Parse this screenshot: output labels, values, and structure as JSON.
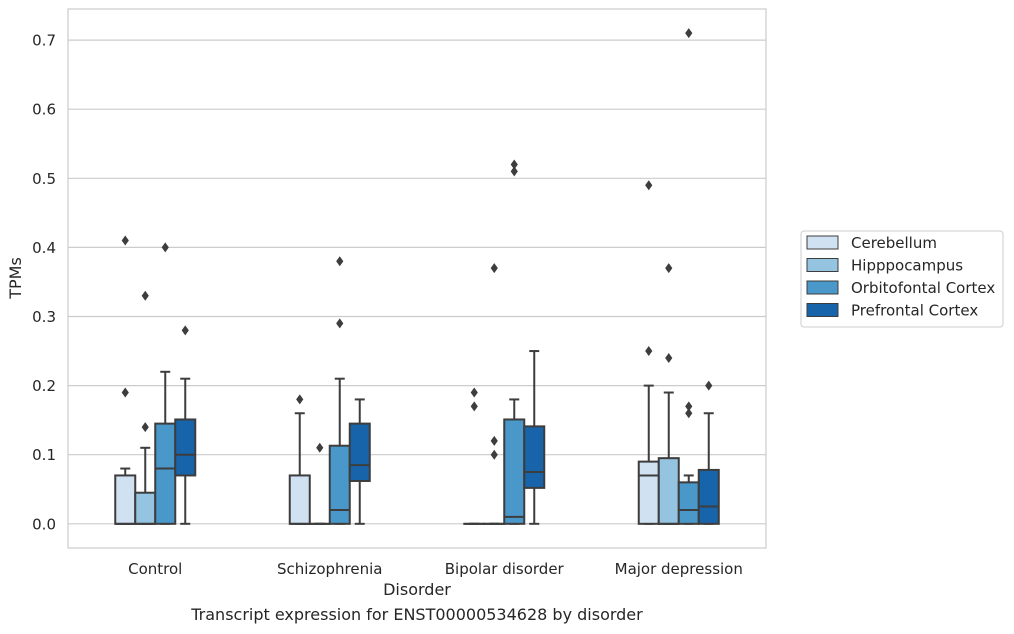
{
  "caption": "Transcript expression for ENST00000534628 by disorder",
  "chart_data": {
    "type": "box",
    "xlabel": "Disorder",
    "ylabel": "TPMs",
    "ylim": [
      -0.035,
      0.745
    ],
    "yticks": [
      0.0,
      0.1,
      0.2,
      0.3,
      0.4,
      0.5,
      0.6,
      0.7
    ],
    "ytick_labels": [
      "0.0",
      "0.1",
      "0.2",
      "0.3",
      "0.4",
      "0.5",
      "0.6",
      "0.7"
    ],
    "categories": [
      "Control",
      "Schizophrenia",
      "Bipolar disorder",
      "Major depression"
    ],
    "grid": true,
    "legend_position": "right",
    "series": [
      {
        "name": "Cerebellum",
        "color": "#d0e1f2",
        "boxes": [
          {
            "q1": 0.0,
            "median": 0.0,
            "q3": 0.07,
            "whisker_low": 0.0,
            "whisker_high": 0.08,
            "outliers": [
              0.19,
              0.41
            ]
          },
          {
            "q1": 0.0,
            "median": 0.0,
            "q3": 0.07,
            "whisker_low": 0.0,
            "whisker_high": 0.16,
            "outliers": [
              0.18
            ]
          },
          {
            "q1": 0.0,
            "median": 0.0,
            "q3": 0.0,
            "whisker_low": 0.0,
            "whisker_high": 0.0,
            "outliers": [
              0.17,
              0.19
            ]
          },
          {
            "q1": 0.0,
            "median": 0.07,
            "q3": 0.09,
            "whisker_low": 0.0,
            "whisker_high": 0.2,
            "outliers": [
              0.25,
              0.49
            ]
          }
        ]
      },
      {
        "name": "Hipppocampus",
        "color": "#94c4df",
        "boxes": [
          {
            "q1": 0.0,
            "median": 0.0,
            "q3": 0.045,
            "whisker_low": 0.0,
            "whisker_high": 0.11,
            "outliers": [
              0.14,
              0.33
            ]
          },
          {
            "q1": 0.0,
            "median": 0.0,
            "q3": 0.0,
            "whisker_low": 0.0,
            "whisker_high": 0.0,
            "outliers": [
              0.11
            ]
          },
          {
            "q1": 0.0,
            "median": 0.0,
            "q3": 0.0,
            "whisker_low": 0.0,
            "whisker_high": 0.0,
            "outliers": [
              0.1,
              0.12,
              0.37
            ]
          },
          {
            "q1": 0.0,
            "median": 0.0,
            "q3": 0.095,
            "whisker_low": 0.0,
            "whisker_high": 0.19,
            "outliers": [
              0.24,
              0.37
            ]
          }
        ]
      },
      {
        "name": "Orbitofontal Cortex",
        "color": "#4a98c9",
        "boxes": [
          {
            "q1": 0.0,
            "median": 0.08,
            "q3": 0.145,
            "whisker_low": 0.0,
            "whisker_high": 0.22,
            "outliers": [
              0.4
            ]
          },
          {
            "q1": 0.0,
            "median": 0.02,
            "q3": 0.113,
            "whisker_low": 0.0,
            "whisker_high": 0.21,
            "outliers": [
              0.29,
              0.38
            ]
          },
          {
            "q1": 0.0,
            "median": 0.01,
            "q3": 0.151,
            "whisker_low": 0.0,
            "whisker_high": 0.18,
            "outliers": [
              0.51,
              0.52
            ]
          },
          {
            "q1": 0.0,
            "median": 0.02,
            "q3": 0.06,
            "whisker_low": 0.0,
            "whisker_high": 0.07,
            "outliers": [
              0.16,
              0.17,
              0.71
            ]
          }
        ]
      },
      {
        "name": "Prefrontal Cortex",
        "color": "#1764ab",
        "boxes": [
          {
            "q1": 0.07,
            "median": 0.1,
            "q3": 0.151,
            "whisker_low": 0.0,
            "whisker_high": 0.21,
            "outliers": [
              0.28
            ]
          },
          {
            "q1": 0.062,
            "median": 0.085,
            "q3": 0.145,
            "whisker_low": 0.0,
            "whisker_high": 0.18,
            "outliers": []
          },
          {
            "q1": 0.052,
            "median": 0.075,
            "q3": 0.141,
            "whisker_low": 0.0,
            "whisker_high": 0.25,
            "outliers": []
          },
          {
            "q1": 0.0,
            "median": 0.025,
            "q3": 0.078,
            "whisker_low": 0.0,
            "whisker_high": 0.16,
            "outliers": [
              0.2
            ]
          }
        ]
      }
    ]
  }
}
